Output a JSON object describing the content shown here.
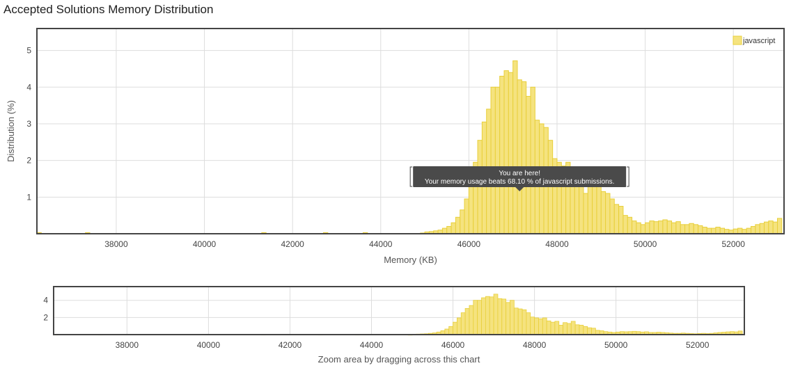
{
  "page_title": "Accepted Solutions Memory Distribution",
  "colors": {
    "bar_fill": "#f5e37f",
    "bar_stroke": "#e8cf3a",
    "grid": "#dddddd",
    "frame": "#444444",
    "tooltip_bg": "#4a4a4a"
  },
  "tooltip": {
    "line1": "You are here!",
    "line2": "Your memory usage beats 68.10 % of javascript submissions.",
    "at_x": 47150
  },
  "chart_data": [
    {
      "type": "bar",
      "role": "main",
      "title": "",
      "xlabel": "Memory (KB)",
      "ylabel": "Distribution (%)",
      "xlim": [
        36200,
        53150
      ],
      "ylim": [
        0,
        5.6
      ],
      "x_ticks": [
        38000,
        40000,
        42000,
        44000,
        46000,
        48000,
        50000,
        52000
      ],
      "y_ticks": [
        1,
        2,
        3,
        4,
        5
      ],
      "grid": true,
      "legend": {
        "position": "top-right",
        "entries": [
          "javascript"
        ]
      },
      "series": [
        {
          "name": "javascript",
          "bin_width": 100,
          "x": [
            36250,
            37350,
            41350,
            42750,
            43650,
            44950,
            45050,
            45150,
            45250,
            45350,
            45450,
            45550,
            45650,
            45750,
            45850,
            45950,
            46050,
            46150,
            46250,
            46350,
            46450,
            46550,
            46650,
            46750,
            46850,
            46950,
            47050,
            47150,
            47250,
            47350,
            47450,
            47550,
            47650,
            47750,
            47850,
            47950,
            48050,
            48150,
            48250,
            48350,
            48450,
            48550,
            48650,
            48750,
            48850,
            48950,
            49050,
            49150,
            49250,
            49350,
            49450,
            49550,
            49650,
            49750,
            49850,
            49950,
            50050,
            50150,
            50250,
            50350,
            50450,
            50550,
            50650,
            50750,
            50850,
            50950,
            51050,
            51150,
            51250,
            51350,
            51450,
            51550,
            51650,
            51750,
            51850,
            51950,
            52050,
            52150,
            52250,
            52350,
            52450,
            52550,
            52650,
            52750,
            52850,
            52950,
            53050
          ],
          "values": [
            0.03,
            0.03,
            0.03,
            0.03,
            0.03,
            0.02,
            0.05,
            0.06,
            0.08,
            0.1,
            0.15,
            0.2,
            0.3,
            0.45,
            0.65,
            0.95,
            1.45,
            1.95,
            2.55,
            3.05,
            3.4,
            4.0,
            4.0,
            4.3,
            4.45,
            4.4,
            4.72,
            4.2,
            4.15,
            3.75,
            4.0,
            3.1,
            3.0,
            2.9,
            2.55,
            2.05,
            1.95,
            1.85,
            1.95,
            1.6,
            1.45,
            1.55,
            1.1,
            1.4,
            1.3,
            1.55,
            1.15,
            1.1,
            0.95,
            0.8,
            0.75,
            0.5,
            0.45,
            0.35,
            0.3,
            0.25,
            0.3,
            0.35,
            0.33,
            0.35,
            0.38,
            0.35,
            0.3,
            0.33,
            0.25,
            0.25,
            0.28,
            0.25,
            0.22,
            0.18,
            0.15,
            0.15,
            0.18,
            0.15,
            0.12,
            0.1,
            0.13,
            0.15,
            0.12,
            0.15,
            0.2,
            0.25,
            0.28,
            0.32,
            0.35,
            0.32,
            0.42
          ]
        }
      ]
    },
    {
      "type": "bar",
      "role": "zoom-navigator",
      "title": "",
      "xlabel": "Zoom area by dragging across this chart",
      "ylabel": "",
      "xlim": [
        36200,
        53150
      ],
      "ylim": [
        0,
        5.6
      ],
      "x_ticks": [
        38000,
        40000,
        42000,
        44000,
        46000,
        48000,
        50000,
        52000
      ],
      "y_ticks": [
        2,
        4
      ],
      "grid": true,
      "series_ref": "same as main chart"
    }
  ]
}
